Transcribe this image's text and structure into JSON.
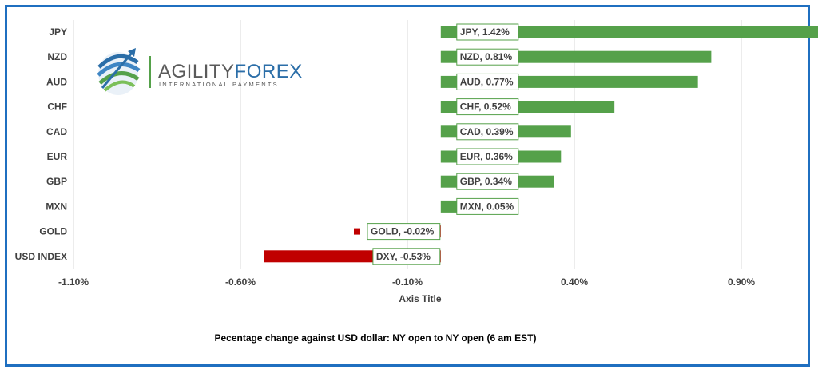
{
  "logo": {
    "word1": "AGILITY",
    "word2": "FOREX",
    "tagline": "INTERNATIONAL PAYMENTS",
    "colors": {
      "word1": "#5a5a5a",
      "word2": "#2b6ea8",
      "accent": "#55a14a"
    }
  },
  "chart_data": {
    "type": "bar",
    "orientation": "horizontal",
    "categories": [
      "JPY",
      "NZD",
      "AUD",
      "CHF",
      "CAD",
      "EUR",
      "GBP",
      "MXN",
      "GOLD",
      "USD INDEX"
    ],
    "values": [
      1.42,
      0.81,
      0.77,
      0.52,
      0.39,
      0.36,
      0.34,
      0.05,
      -0.02,
      -0.53
    ],
    "data_labels": [
      "JPY, 1.42%",
      "NZD, 0.81%",
      "AUD, 0.77%",
      "CHF, 0.52%",
      "CAD, 0.39%",
      "EUR, 0.36%",
      "GBP, 0.34%",
      "MXN, 0.05%",
      "GOLD, -0.02%",
      "DXY, -0.53%"
    ],
    "xticks": [
      "-1.10%",
      "-0.60%",
      "-0.10%",
      "0.40%",
      "0.90%"
    ],
    "xlabel": "Axis Title",
    "caption": "Pecentage change against USD dollar:  NY open to NY open  (6 am EST)",
    "grid": true,
    "colors": {
      "positive": "#55a14a",
      "negative": "#c00000",
      "frame": "#1f6fc0",
      "label_border": "#55a14a"
    }
  }
}
